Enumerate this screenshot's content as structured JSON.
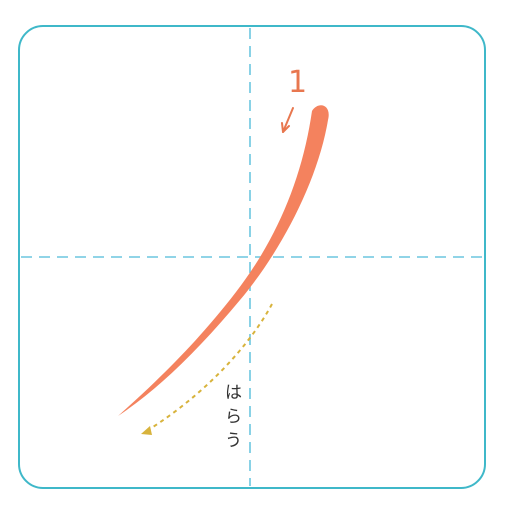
{
  "practice_box": {
    "border_color": "#3fb8c9",
    "guide_color": "#6cc6df"
  },
  "stroke": {
    "color": "#f4825e",
    "number": "1",
    "number_color": "#e8774f",
    "direction_arrow_icon": "arrow-down-left"
  },
  "annotation": {
    "lines": [
      "は",
      "ら",
      "う"
    ],
    "dotted_path_color": "#d8b33c",
    "text_color": "#333333"
  }
}
